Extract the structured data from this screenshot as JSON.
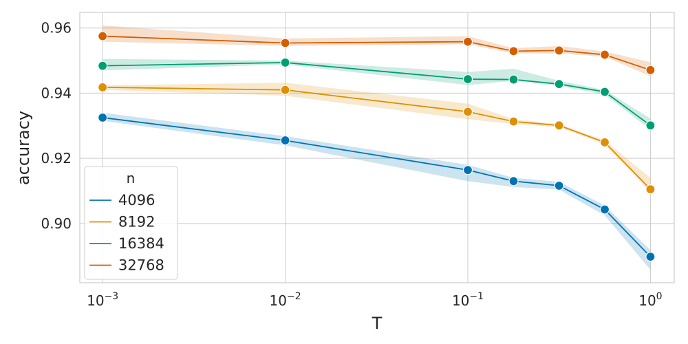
{
  "chart_data": {
    "type": "line",
    "xlabel": "T",
    "ylabel": "accuracy",
    "x_scale": "log",
    "xlim": [
      0.00075,
      1.35
    ],
    "ylim": [
      0.8818,
      0.9648
    ],
    "x_ticks": [
      {
        "value": 0.001,
        "base": "10",
        "exp": "−3"
      },
      {
        "value": 0.01,
        "base": "10",
        "exp": "−2"
      },
      {
        "value": 0.1,
        "base": "10",
        "exp": "−1"
      },
      {
        "value": 1,
        "base": "10",
        "exp": "0"
      }
    ],
    "y_ticks": [
      {
        "value": 0.9,
        "label": "0.90"
      },
      {
        "value": 0.92,
        "label": "0.92"
      },
      {
        "value": 0.94,
        "label": "0.94"
      },
      {
        "value": 0.96,
        "label": "0.96"
      }
    ],
    "grid": true,
    "legend": {
      "title": "n",
      "position": "lower-left"
    },
    "x": [
      0.001,
      0.01,
      0.1,
      0.178,
      0.316,
      0.562,
      1.0
    ],
    "series": [
      {
        "name": "4096",
        "color": "#0173b2",
        "values": [
          0.9325,
          0.9255,
          0.9164,
          0.913,
          0.9116,
          0.9043,
          0.8898
        ],
        "lower": [
          0.9315,
          0.924,
          0.913,
          0.9112,
          0.9104,
          0.9025,
          0.8858
        ],
        "upper": [
          0.934,
          0.9268,
          0.918,
          0.914,
          0.9128,
          0.9055,
          0.8918
        ]
      },
      {
        "name": "8192",
        "color": "#de8f05",
        "values": [
          0.9418,
          0.941,
          0.9343,
          0.9313,
          0.9301,
          0.9249,
          0.9105
        ],
        "lower": [
          0.941,
          0.9392,
          0.932,
          0.9305,
          0.9296,
          0.9242,
          0.9095
        ],
        "upper": [
          0.9424,
          0.9432,
          0.9368,
          0.932,
          0.9305,
          0.9255,
          0.914
        ]
      },
      {
        "name": "16384",
        "color": "#029e73",
        "values": [
          0.9484,
          0.9494,
          0.9443,
          0.9442,
          0.9428,
          0.9404,
          0.9301
        ],
        "lower": [
          0.947,
          0.9488,
          0.9425,
          0.9438,
          0.9422,
          0.9396,
          0.9288
        ],
        "upper": [
          0.9505,
          0.95,
          0.9465,
          0.9475,
          0.9438,
          0.941,
          0.9322
        ]
      },
      {
        "name": "32768",
        "color": "#d55e00",
        "values": [
          0.9575,
          0.9554,
          0.9558,
          0.9529,
          0.9531,
          0.9518,
          0.9471
        ],
        "lower": [
          0.9558,
          0.9545,
          0.955,
          0.9522,
          0.9522,
          0.9512,
          0.9452
        ],
        "upper": [
          0.9608,
          0.9568,
          0.9575,
          0.9538,
          0.9545,
          0.9528,
          0.9495
        ]
      }
    ]
  }
}
